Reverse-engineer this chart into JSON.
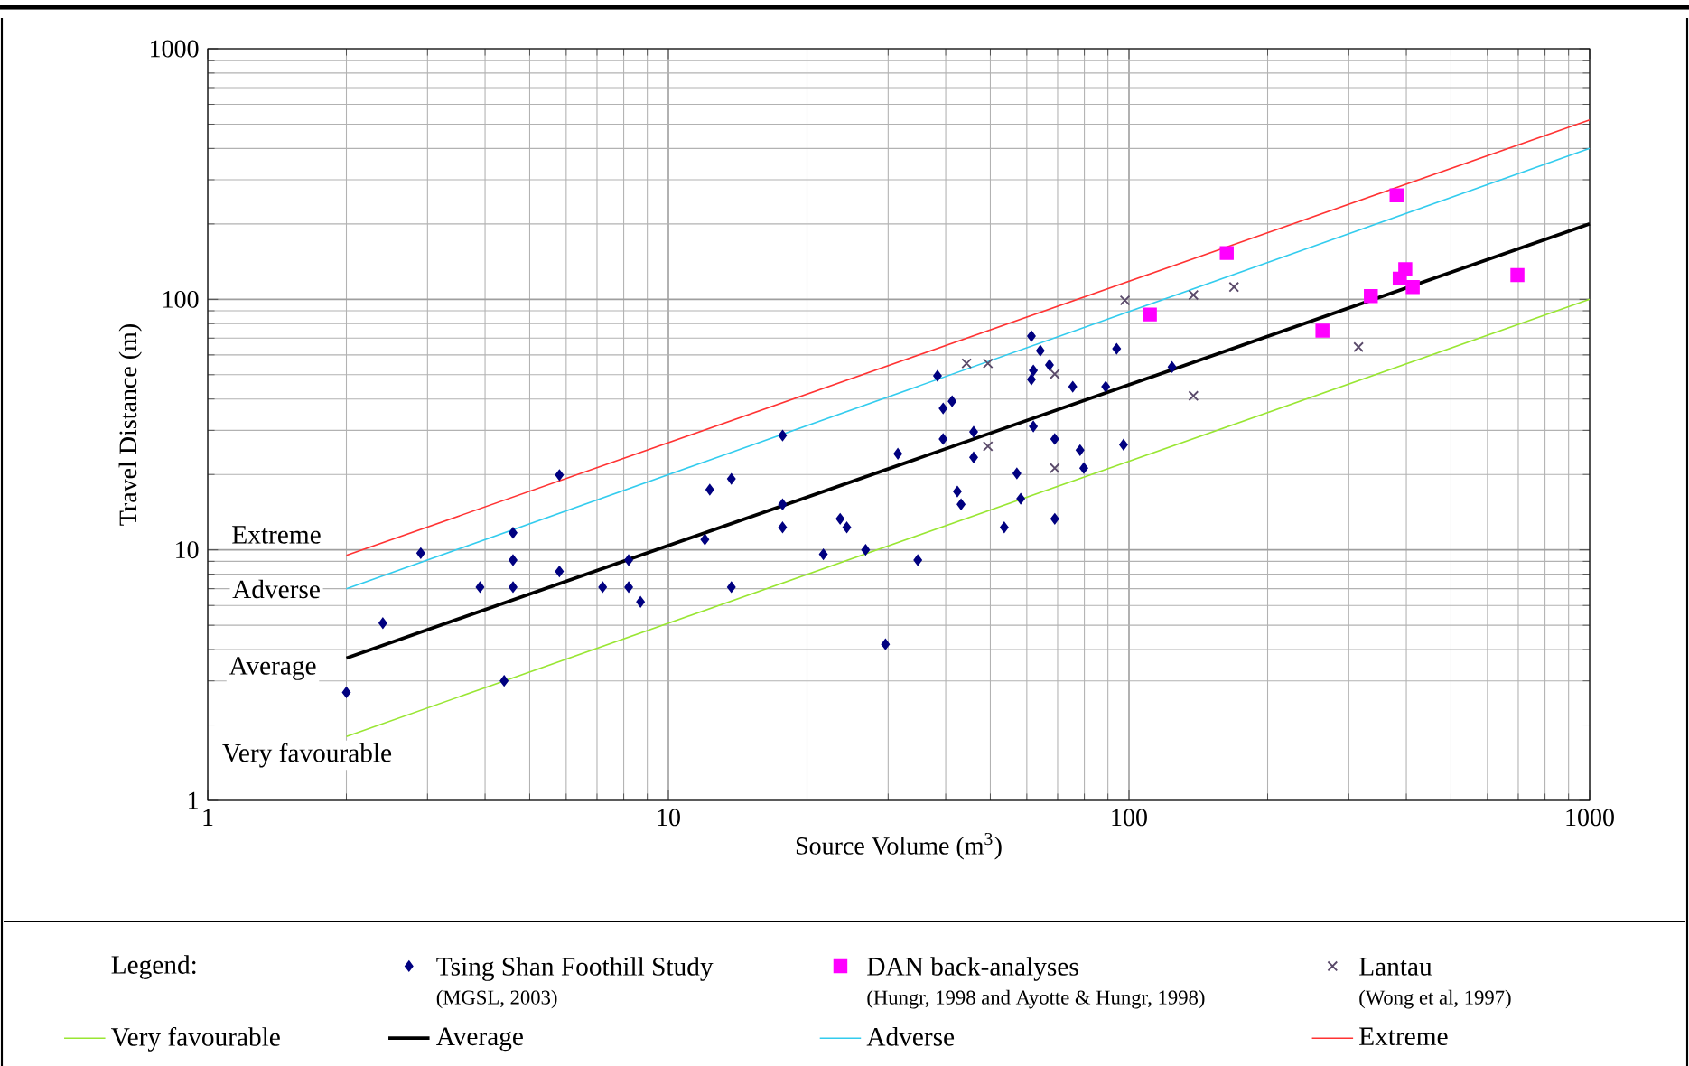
{
  "chart_data": {
    "type": "scatter",
    "xlabel": "Source Volume (m$^{3}$)",
    "ylabel": "Travel Distance (m)",
    "legend_title": "Legend:",
    "log": "xy",
    "grid": true,
    "legend": "bottom",
    "xlim": [
      1,
      1000
    ],
    "ylim": [
      1,
      1000
    ],
    "xticks": [
      1,
      10,
      100,
      1000
    ],
    "yticks": [
      1,
      10,
      100,
      1000
    ],
    "series": [
      {
        "name": "Tsing Shan Foothill Study",
        "marker": "diamond",
        "color": "#000080",
        "x": [
          2.0,
          2.4,
          2.9,
          3.9,
          4.4,
          4.6,
          4.6,
          4.6,
          5.8,
          5.8,
          7.2,
          8.2,
          8.2,
          8.7,
          12,
          12.3,
          13.7,
          13.7,
          17.7,
          17.7,
          17.7,
          21.7,
          23.6,
          24.4,
          26.8,
          29.6,
          31.5,
          34.8,
          38.4,
          39.5,
          39.5,
          41.3,
          42.4,
          43.2,
          46,
          46,
          53.6,
          57.1,
          58.2,
          61.4,
          62,
          61.4,
          62,
          64.2,
          67.2,
          69,
          69,
          75.5,
          78.3,
          79.8,
          89,
          94,
          97.3,
          124
        ],
        "values": [
          2.7,
          5.1,
          9.7,
          7.1,
          3.0,
          11.7,
          9.1,
          7.1,
          19.9,
          8.2,
          7.1,
          9.1,
          7.1,
          6.2,
          11,
          17.4,
          19.2,
          7.1,
          28.6,
          15.2,
          12.3,
          9.6,
          13.3,
          12.3,
          10,
          4.2,
          24.2,
          9.1,
          49.5,
          36.7,
          27.7,
          39.2,
          17.1,
          15.2,
          29.6,
          23.4,
          12.3,
          20.2,
          16,
          71.3,
          52,
          47.9,
          31.1,
          62.4,
          54.7,
          27.7,
          13.3,
          44.8,
          25,
          21.2,
          44.8,
          63.5,
          26.3,
          53.7
        ]
      },
      {
        "name": "DAN back-analyses",
        "marker": "square",
        "color": "#ff00ff",
        "x": [
          111,
          163,
          263,
          335,
          381,
          387,
          398,
          413,
          697
        ],
        "values": [
          87,
          153,
          75,
          103,
          260,
          121,
          132,
          112,
          125
        ]
      },
      {
        "name": "Lantau",
        "marker": "cross",
        "color": "#5a4a6a",
        "x": [
          44.4,
          49.4,
          69,
          49.4,
          69,
          98,
          138,
          138,
          169,
          315
        ],
        "values": [
          55.5,
          55.5,
          50.3,
          25.9,
          21.2,
          99,
          104,
          41.2,
          112,
          64.5
        ]
      },
      {
        "name": "Very favourable",
        "type": "line",
        "marker": "none",
        "color": "#99e633",
        "x": [
          2,
          1000
        ],
        "values": [
          1.8,
          100
        ]
      },
      {
        "name": "Average",
        "type": "line",
        "marker": "none",
        "color": "#000000",
        "x": [
          2,
          1000
        ],
        "values": [
          3.7,
          200
        ]
      },
      {
        "name": "Adverse",
        "type": "line",
        "marker": "none",
        "color": "#33ccee",
        "x": [
          2,
          1000
        ],
        "values": [
          7,
          400
        ]
      },
      {
        "name": "Extreme",
        "type": "line",
        "marker": "none",
        "color": "#ff3333",
        "x": [
          2,
          1000
        ],
        "values": [
          9.5,
          520
        ]
      }
    ],
    "annotations": [
      "Extreme",
      "Adverse",
      "Average",
      "Very favourable",
      "(MGSL, 2003)",
      "(Hungr, 1998 and Ayotte & Hungr, 1998)",
      "(Wong et al, 1997)"
    ]
  }
}
